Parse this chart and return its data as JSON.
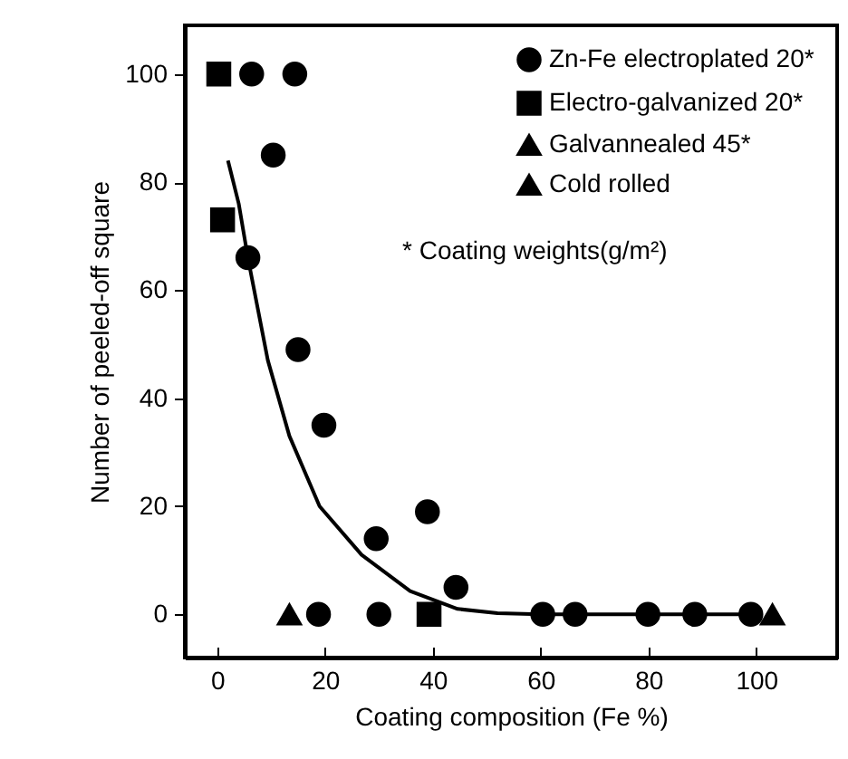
{
  "chart_data": {
    "type": "scatter",
    "xlabel": "Coating composition (Fe %)",
    "ylabel": "Number of peeled-off square",
    "xlim": [
      -6,
      115
    ],
    "ylim": [
      -8,
      109
    ],
    "xticks": [
      0,
      20,
      40,
      60,
      80,
      100
    ],
    "yticks": [
      0,
      20,
      40,
      60,
      80,
      100
    ],
    "grid": false,
    "legend": "top right",
    "annotations": [
      "* Coating weights(g/m²)"
    ],
    "series": [
      {
        "name": "Zn-Fe electroplated 20*",
        "color": "#000000",
        "marker": "circle",
        "x": [
          6.4,
          14.4,
          10.4,
          5.7,
          15,
          19.8,
          29.5,
          39,
          44.3,
          18.8,
          30,
          60.4,
          66.4,
          79.9,
          88.6,
          99
        ],
        "values": [
          100,
          100,
          85,
          66,
          49,
          35,
          14,
          19,
          5,
          0,
          0,
          0,
          0,
          0,
          0,
          0
        ]
      },
      {
        "name": "Electro-galvanized 20*",
        "color": "#000000",
        "marker": "square",
        "x": [
          0.3,
          1,
          39.3
        ],
        "values": [
          100,
          73,
          0
        ]
      },
      {
        "name": "Galvannealed 45*",
        "color": "#000000",
        "marker": "triangle",
        "x": [
          13.4
        ],
        "values": [
          0
        ]
      },
      {
        "name": "Cold rolled",
        "color": "#000000",
        "marker": "triangle",
        "x": [
          103
        ],
        "values": [
          0
        ]
      },
      {
        "type": "line",
        "color": "#000000",
        "marker": "none",
        "x": [
          2,
          4,
          5.7,
          9.4,
          13.4,
          19,
          26.8,
          35.8,
          44.6,
          52,
          60,
          80,
          100
        ],
        "values": [
          84,
          76,
          66,
          47,
          33,
          20,
          11,
          4.3,
          1,
          0.2,
          0,
          0,
          0
        ]
      }
    ]
  }
}
